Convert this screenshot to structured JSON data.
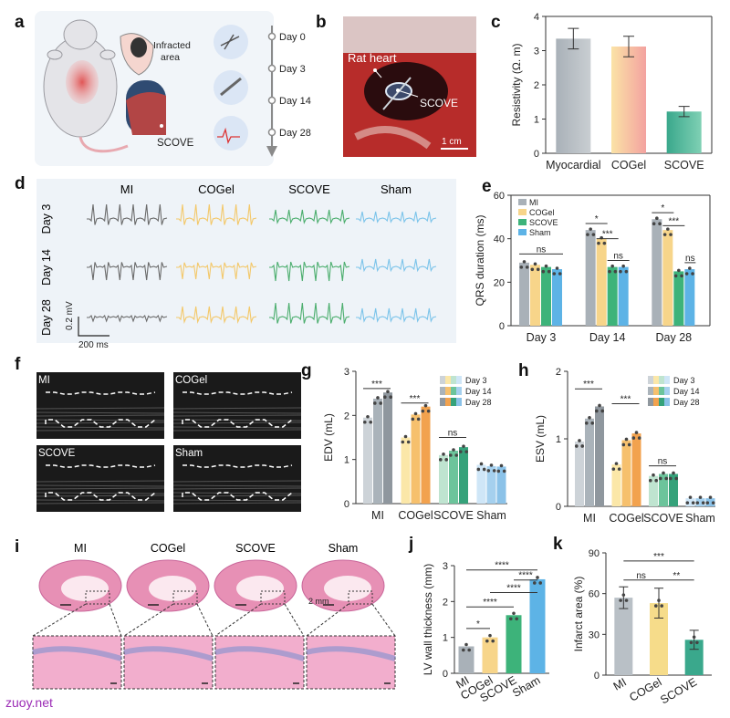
{
  "panels": {
    "a": {
      "letter": "a",
      "infarct": "Infracted\narea",
      "scove": "SCOVE",
      "days": [
        "Day 0",
        "Day 3",
        "Day 14",
        "Day 28"
      ]
    },
    "b": {
      "letter": "b",
      "heart": "Rat heart",
      "scove": "SCOVE",
      "scale": "1 cm"
    },
    "c": {
      "letter": "c"
    },
    "d": {
      "letter": "d",
      "groups": [
        "MI",
        "COGel",
        "SCOVE",
        "Sham"
      ],
      "days": [
        "Day 3",
        "Day 14",
        "Day 28"
      ],
      "scale_v": "0.2 mV",
      "scale_t": "200 ms",
      "colors": [
        "#6b6b6b",
        "#f3c86a",
        "#4cae6e",
        "#7cc4ea"
      ]
    },
    "e": {
      "letter": "e"
    },
    "f": {
      "letter": "f",
      "labels": [
        "MI",
        "COGel",
        "SCOVE",
        "Sham"
      ]
    },
    "g": {
      "letter": "g"
    },
    "h": {
      "letter": "h"
    },
    "i": {
      "letter": "i",
      "groups": [
        "MI",
        "COGel",
        "SCOVE",
        "Sham"
      ],
      "scale": "2 mm"
    },
    "j": {
      "letter": "j"
    },
    "k": {
      "letter": "k"
    }
  },
  "watermark": "zuoy.net",
  "chart_data": [
    {
      "id": "c",
      "type": "bar",
      "ylabel": "Resistivity (Ω. m)",
      "ylim": [
        0,
        4
      ],
      "yticks": [
        0,
        1,
        2,
        3,
        4
      ],
      "categories": [
        "Myocardial",
        "COGel",
        "SCOVE"
      ],
      "values": [
        3.35,
        3.12,
        1.22
      ],
      "errors": [
        0.3,
        0.3,
        0.15
      ],
      "colors": [
        "#b9c0c6",
        "#f6c882",
        "#3aa88c"
      ]
    },
    {
      "id": "e",
      "type": "bar",
      "ylabel": "QRS  duration (ms)",
      "ylim": [
        0,
        60
      ],
      "yticks": [
        0,
        20,
        40,
        60
      ],
      "categories": [
        "Day 3",
        "Day 14",
        "Day 28"
      ],
      "series": [
        {
          "name": "MI",
          "values": [
            29,
            44,
            49
          ]
        },
        {
          "name": "COGel",
          "values": [
            28,
            40,
            44
          ]
        },
        {
          "name": "SCOVE",
          "values": [
            27,
            27,
            25
          ]
        },
        {
          "name": "Sham",
          "values": [
            26,
            27,
            26
          ]
        }
      ],
      "colors": [
        "#a9b1b8",
        "#f7d58a",
        "#3db37a",
        "#5db3e6"
      ],
      "significance": [
        {
          "label": "ns"
        },
        {
          "label": "*"
        },
        {
          "label": "***"
        },
        {
          "label": "ns"
        },
        {
          "label": "*"
        },
        {
          "label": "***"
        },
        {
          "label": "ns"
        }
      ]
    },
    {
      "id": "g",
      "type": "bar",
      "ylabel": "EDV (mL)",
      "ylim": [
        0,
        3
      ],
      "yticks": [
        0,
        1,
        2,
        3
      ],
      "categories": [
        "MI",
        "COGel",
        "SCOVE",
        "Sham"
      ],
      "series": [
        {
          "name": "Day 3",
          "values": [
            1.95,
            1.5,
            1.1,
            0.88
          ]
        },
        {
          "name": "Day 14",
          "values": [
            2.38,
            2.02,
            1.2,
            0.85
          ]
        },
        {
          "name": "Day 28",
          "values": [
            2.52,
            2.2,
            1.28,
            0.84
          ]
        }
      ],
      "significance": [
        "***",
        "***",
        "ns"
      ]
    },
    {
      "id": "h",
      "type": "bar",
      "ylabel": "ESV (mL)",
      "ylim": [
        0,
        2
      ],
      "yticks": [
        0,
        1,
        2
      ],
      "categories": [
        "MI",
        "COGel",
        "SCOVE",
        "Sham"
      ],
      "series": [
        {
          "name": "Day 3",
          "values": [
            0.96,
            0.62,
            0.45,
            0.12
          ]
        },
        {
          "name": "Day 14",
          "values": [
            1.3,
            0.98,
            0.48,
            0.12
          ]
        },
        {
          "name": "Day 28",
          "values": [
            1.48,
            1.08,
            0.48,
            0.12
          ]
        }
      ],
      "significance": [
        "***",
        "***",
        "ns"
      ]
    },
    {
      "id": "j",
      "type": "bar",
      "ylabel": "LV wall thickness (mm)",
      "ylim": [
        0,
        3
      ],
      "yticks": [
        0,
        1,
        2,
        3
      ],
      "categories": [
        "MI",
        "COGel",
        "SCOVE",
        "Sham"
      ],
      "values": [
        0.75,
        1.0,
        1.62,
        2.62
      ],
      "colors": [
        "#a9b1b8",
        "#f7d58a",
        "#3db37a",
        "#5db3e6"
      ],
      "significance": [
        "*",
        "****",
        "****",
        "****",
        "****"
      ]
    },
    {
      "id": "k",
      "type": "bar",
      "ylabel": "Infarct area (%)",
      "ylim": [
        0,
        90
      ],
      "yticks": [
        0,
        30,
        60,
        90
      ],
      "categories": [
        "MI",
        "COGel",
        "SCOVE"
      ],
      "values": [
        57,
        53,
        26
      ],
      "errors": [
        8,
        11,
        7
      ],
      "colors": [
        "#b9c0c6",
        "#f6dc8a",
        "#3aa88c"
      ],
      "significance": [
        "ns",
        "**",
        "***"
      ]
    }
  ]
}
